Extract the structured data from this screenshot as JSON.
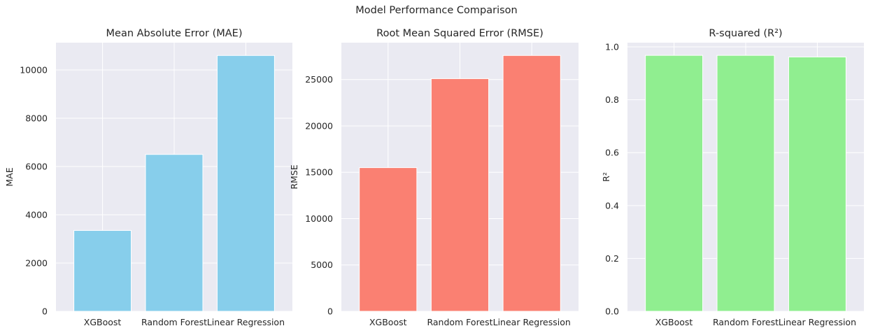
{
  "figure": {
    "suptitle": "Model Performance Comparison"
  },
  "chart_data": [
    {
      "type": "bar",
      "title": "Mean Absolute Error (MAE)",
      "xlabel": "",
      "ylabel": "MAE",
      "categories": [
        "XGBoost",
        "Random Forest",
        "Linear Regression"
      ],
      "values": [
        3350,
        6500,
        10600
      ],
      "ylim": [
        0,
        11130
      ],
      "yticks": [
        0,
        2000,
        4000,
        6000,
        8000,
        10000
      ],
      "color": "#87ceeb",
      "grid": true
    },
    {
      "type": "bar",
      "title": "Root Mean Squared Error (RMSE)",
      "xlabel": "",
      "ylabel": "RMSE",
      "categories": [
        "XGBoost",
        "Random Forest",
        "Linear Regression"
      ],
      "values": [
        15500,
        25100,
        27600
      ],
      "ylim": [
        0,
        28980
      ],
      "yticks": [
        0,
        5000,
        10000,
        15000,
        20000,
        25000
      ],
      "color": "#fa8072",
      "grid": true
    },
    {
      "type": "bar",
      "title": "R-squared (R²)",
      "xlabel": "",
      "ylabel": "R²",
      "categories": [
        "XGBoost",
        "Random Forest",
        "Linear Regression"
      ],
      "values": [
        0.968,
        0.968,
        0.962
      ],
      "ylim": [
        0,
        1.016
      ],
      "yticks": [
        0.0,
        0.2,
        0.4,
        0.6,
        0.8,
        1.0
      ],
      "ytick_decimals": 1,
      "color": "#90ee90",
      "grid": true
    }
  ]
}
